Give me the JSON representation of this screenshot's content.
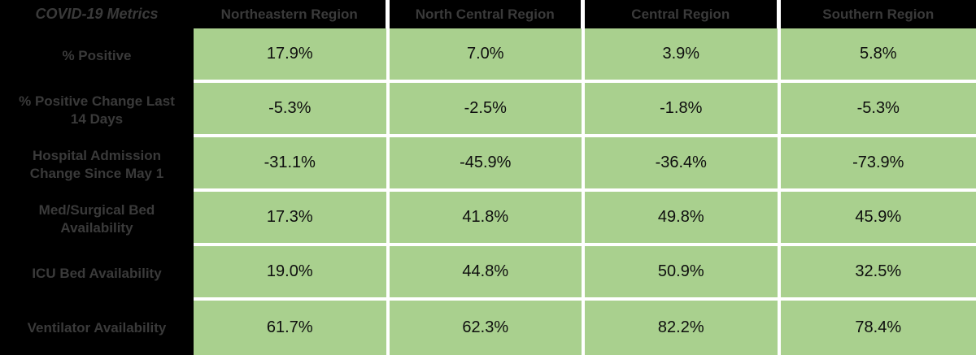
{
  "chart_data": {
    "type": "table",
    "title": "COVID-19 Metrics",
    "columns": [
      "Northeastern Region",
      "North Central Region",
      "Central Region",
      "Southern Region"
    ],
    "rows": [
      {
        "label": "% Positive",
        "values": [
          "17.9%",
          "7.0%",
          "3.9%",
          "5.8%"
        ]
      },
      {
        "label": "% Positive Change Last 14 Days",
        "values": [
          "-5.3%",
          "-2.5%",
          "-1.8%",
          "-5.3%"
        ]
      },
      {
        "label": "Hospital Admission Change Since May 1",
        "values": [
          "-31.1%",
          "-45.9%",
          "-36.4%",
          "-73.9%"
        ]
      },
      {
        "label": "Med/Surgical Bed Availability",
        "values": [
          "17.3%",
          "41.8%",
          "49.8%",
          "45.9%"
        ]
      },
      {
        "label": "ICU Bed Availability",
        "values": [
          "19.0%",
          "44.8%",
          "50.9%",
          "32.5%"
        ]
      },
      {
        "label": "Ventilator Availability",
        "values": [
          "61.7%",
          "62.3%",
          "82.2%",
          "78.4%"
        ]
      }
    ],
    "layout": {
      "legend": "none",
      "grid_lines": "white between data cells",
      "header_row": "black background",
      "label_column": "black background"
    }
  },
  "colors": {
    "cell_bg": "#a9d08e",
    "header_bg": "#000000",
    "header_text": "#3a3a3a",
    "value_text": "#0e0e0e",
    "grid_line": "#ffffff"
  }
}
